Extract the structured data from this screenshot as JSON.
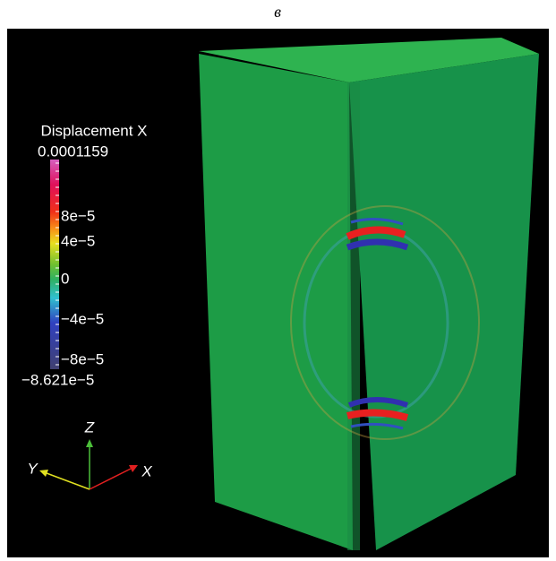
{
  "title": "в",
  "legend": {
    "title": "Displacement X",
    "max": "0.0001159",
    "ticks": [
      "8e−5",
      "4e−5",
      "0",
      "−4e−5",
      "−8e−5"
    ],
    "min": "−8.621e−5"
  },
  "axes": {
    "z": "Z",
    "y": "Y",
    "x": "X"
  }
}
